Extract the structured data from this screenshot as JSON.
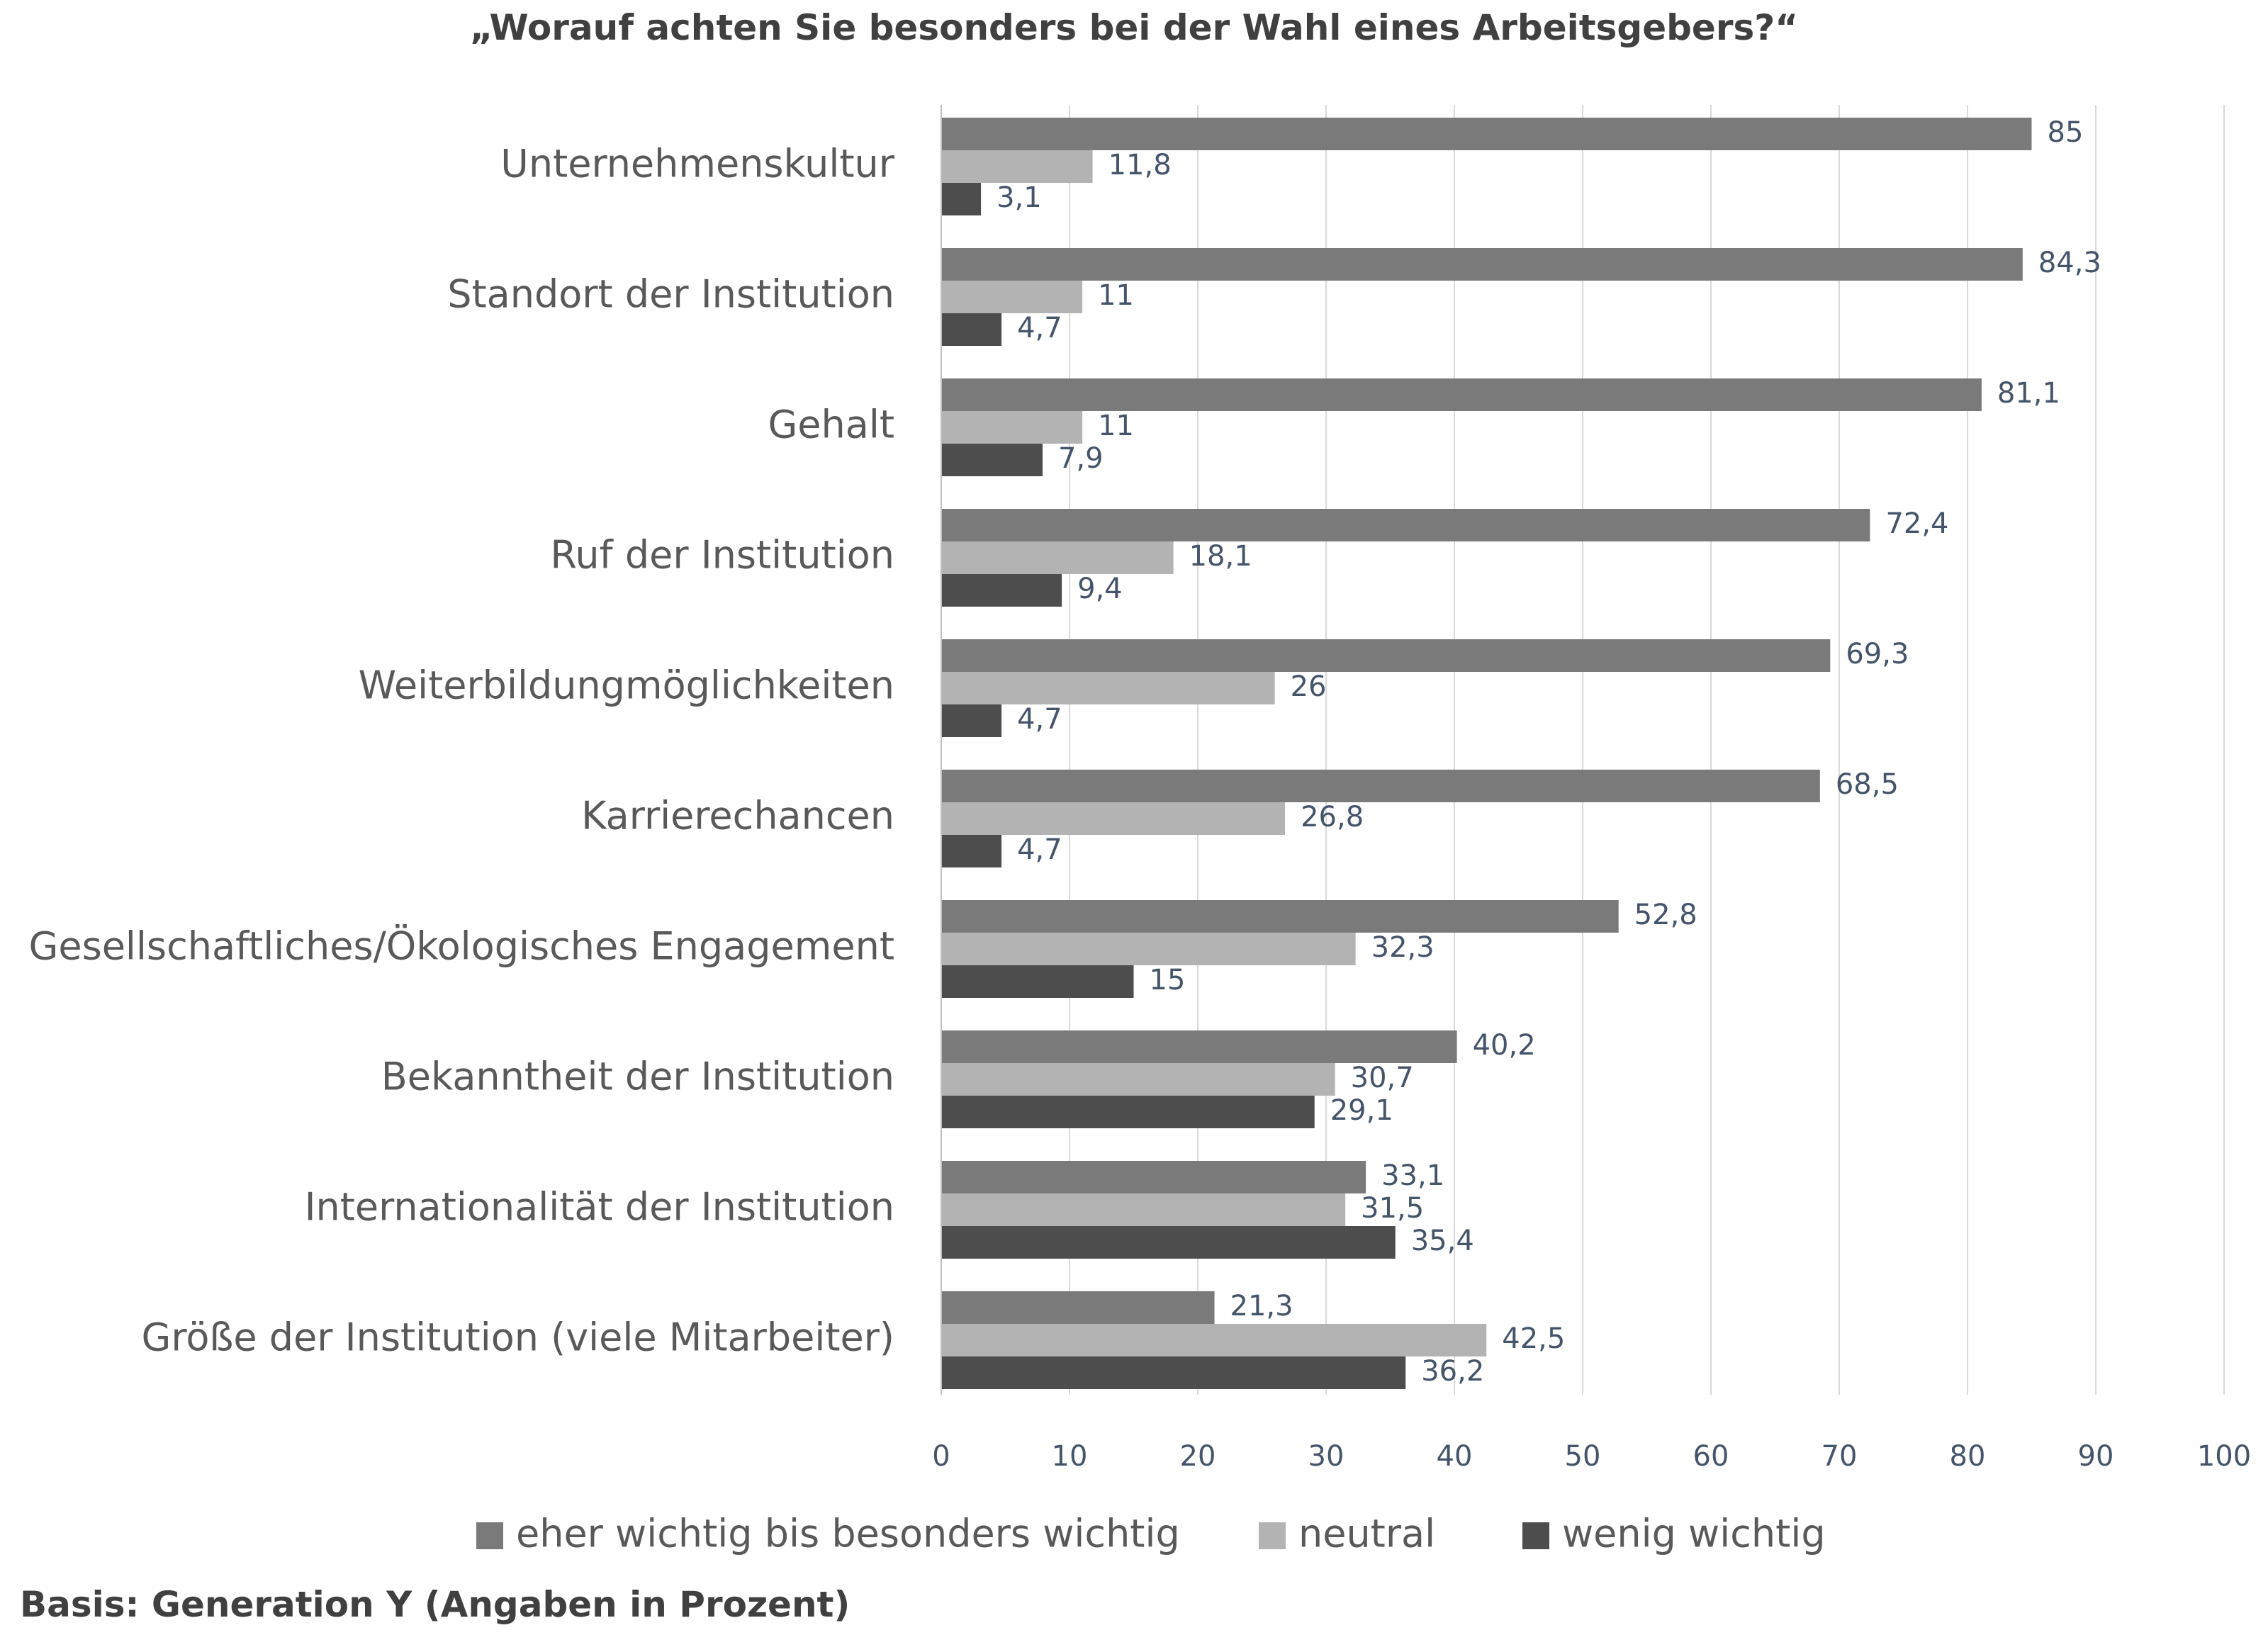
{
  "chart_data": {
    "type": "bar",
    "orientation": "horizontal",
    "title": "„Worauf achten Sie besonders bei der Wahl eines Arbeitsgebers?“",
    "categories": [
      "Unternehmenskultur",
      "Standort der Institution",
      "Gehalt",
      "Ruf der Institution",
      "Weiterbildungmöglichkeiten",
      "Karrierechancen",
      "Gesellschaftliches/Ökologisches Engagement",
      "Bekanntheit der Institution",
      "Internationalität der Institution",
      "Größe der Institution (viele Mitarbeiter)"
    ],
    "series": [
      {
        "name": "eher wichtig bis besonders wichtig",
        "color": "#7a7a7a",
        "values": [
          85,
          84.3,
          81.1,
          72.4,
          69.3,
          68.5,
          52.8,
          40.2,
          33.1,
          21.3
        ],
        "labels": [
          "85",
          "84,3",
          "81,1",
          "72,4",
          "69,3",
          "68,5",
          "52,8",
          "40,2",
          "33,1",
          "21,3"
        ]
      },
      {
        "name": "neutral",
        "color": "#b3b3b3",
        "values": [
          11.8,
          11,
          11,
          18.1,
          26,
          26.8,
          32.3,
          30.7,
          31.5,
          42.5
        ],
        "labels": [
          "11,8",
          "11",
          "11",
          "18,1",
          "26",
          "26,8",
          "32,3",
          "30,7",
          "31,5",
          "42,5"
        ]
      },
      {
        "name": "wenig wichtig",
        "color": "#4d4d4d",
        "values": [
          3.1,
          4.7,
          7.9,
          9.4,
          4.7,
          4.7,
          15,
          29.1,
          35.4,
          36.2
        ],
        "labels": [
          "3,1",
          "4,7",
          "7,9",
          "9,4",
          "4,7",
          "4,7",
          "15",
          "29,1",
          "35,4",
          "36,2"
        ]
      }
    ],
    "xlim": [
      0,
      100
    ],
    "xticks": [
      "0",
      "10",
      "20",
      "30",
      "40",
      "50",
      "60",
      "70",
      "80",
      "90",
      "100"
    ],
    "grid": "vertical",
    "legend_position": "bottom",
    "label_color": "#44546a",
    "footnote": "Basis: Generation Y (Angaben in Prozent)"
  }
}
